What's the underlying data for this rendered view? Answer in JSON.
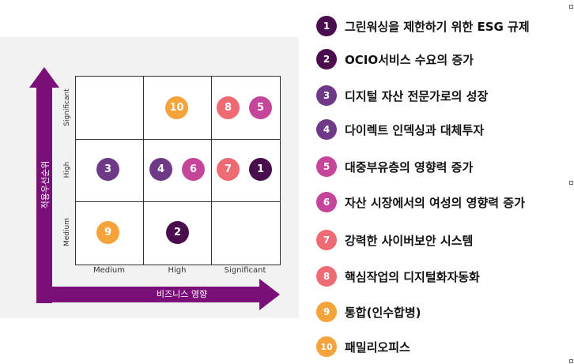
{
  "colors": {
    "dark_purple": "#4a0e4e",
    "purple": "#6e3a87",
    "magenta": "#c4459a",
    "coral": "#ee6b73",
    "orange": "#f5a33a",
    "axis": "#7b0f7a"
  },
  "matrix": {
    "x_axis_title": "비즈니스 영향",
    "y_axis_title": "적용우선순위",
    "columns": [
      "Medium",
      "High",
      "Significant"
    ],
    "rows": [
      "Significant",
      "High",
      "Medium"
    ]
  },
  "bubbles": [
    {
      "num": "10",
      "row": "Significant",
      "col": "High",
      "color": "#f5a33a"
    },
    {
      "num": "8",
      "row": "Significant",
      "col": "Significant",
      "color": "#ee6b73"
    },
    {
      "num": "5",
      "row": "Significant",
      "col": "Significant",
      "color": "#c4459a"
    },
    {
      "num": "3",
      "row": "High",
      "col": "Medium",
      "color": "#6e3a87"
    },
    {
      "num": "4",
      "row": "High",
      "col": "High",
      "color": "#6e3a87"
    },
    {
      "num": "6",
      "row": "High",
      "col": "High",
      "color": "#c4459a"
    },
    {
      "num": "7",
      "row": "High",
      "col": "Significant",
      "color": "#ee6b73"
    },
    {
      "num": "1",
      "row": "High",
      "col": "Significant",
      "color": "#4a0e4e"
    },
    {
      "num": "9",
      "row": "Medium",
      "col": "Medium",
      "color": "#f5a33a"
    },
    {
      "num": "2",
      "row": "Medium",
      "col": "High",
      "color": "#4a0e4e"
    }
  ],
  "legend": [
    {
      "num": "1",
      "text": "그린워싱을 제한하기 위한 ESG 규제",
      "color": "#4a0e4e"
    },
    {
      "num": "2",
      "text": "OCIO서비스 수요의 증가",
      "color": "#4a0e4e"
    },
    {
      "num": "3",
      "text": "디지털 자산 전문가로의 성장",
      "color": "#6e3a87"
    },
    {
      "num": "4",
      "text": "다이렉트 인덱싱과 대체투자",
      "color": "#6e3a87"
    },
    {
      "num": "5",
      "text": "대중부유층의 영향력 증가",
      "color": "#c4459a"
    },
    {
      "num": "6",
      "text": "자산 시장에서의 여성의 영향력 증가",
      "color": "#c4459a"
    },
    {
      "num": "7",
      "text": "강력한 사이버보안 시스템",
      "color": "#ee6b73"
    },
    {
      "num": "8",
      "text": "핵심작업의 디지털화자동화",
      "color": "#ee6b73"
    },
    {
      "num": "9",
      "text": "통합(인수합병)",
      "color": "#f5a33a"
    },
    {
      "num": "10",
      "text": "패밀리오피스",
      "color": "#f5a33a"
    }
  ]
}
